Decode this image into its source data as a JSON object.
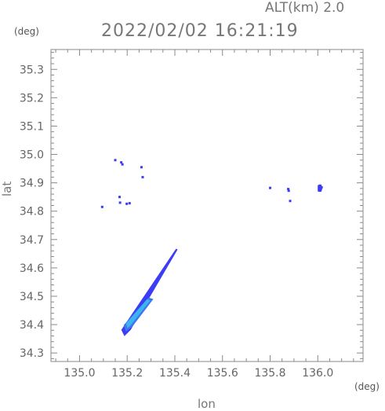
{
  "header": {
    "altitude": "ALT(km) 2.0",
    "timestamp": "2022/02/02 16:21:19",
    "y_unit": "(deg)",
    "x_unit": "(deg)"
  },
  "chart_data": {
    "type": "scatter",
    "xlabel": "lon",
    "ylabel": "lat",
    "xlim": [
      134.88,
      136.19
    ],
    "ylim": [
      34.27,
      35.37
    ],
    "xticks": [
      135.0,
      135.2,
      135.4,
      135.6,
      135.8,
      136.0
    ],
    "xtick_labels": [
      "135.0",
      "135.2",
      "135.4",
      "135.6",
      "135.8",
      "136.0"
    ],
    "yticks": [
      34.3,
      34.4,
      34.5,
      34.6,
      34.7,
      34.8,
      34.9,
      35.0,
      35.1,
      35.2,
      35.3
    ],
    "ytick_labels": [
      "34.3",
      "34.4",
      "34.5",
      "34.6",
      "34.7",
      "34.8",
      "34.9",
      "35.0",
      "35.1",
      "35.2",
      "35.3"
    ],
    "colors": {
      "dark": "#3c3cf5",
      "medium": "#3c78f0",
      "light": "#3cb4f0"
    },
    "band": {
      "start": [
        135.195,
        34.365
      ],
      "end": [
        135.405,
        34.665
      ],
      "bright_end": [
        135.29,
        34.49
      ]
    },
    "points": [
      {
        "x": 135.15,
        "y": 34.98,
        "level": "dark"
      },
      {
        "x": 135.175,
        "y": 34.972,
        "level": "dark"
      },
      {
        "x": 135.18,
        "y": 34.965,
        "level": "dark"
      },
      {
        "x": 135.26,
        "y": 34.955,
        "level": "dark"
      },
      {
        "x": 135.265,
        "y": 34.92,
        "level": "dark"
      },
      {
        "x": 135.168,
        "y": 34.85,
        "level": "dark"
      },
      {
        "x": 135.17,
        "y": 34.83,
        "level": "dark"
      },
      {
        "x": 135.198,
        "y": 34.826,
        "level": "dark"
      },
      {
        "x": 135.21,
        "y": 34.828,
        "level": "dark"
      },
      {
        "x": 135.095,
        "y": 34.815,
        "level": "dark"
      },
      {
        "x": 135.8,
        "y": 34.882,
        "level": "dark"
      },
      {
        "x": 135.876,
        "y": 34.878,
        "level": "dark"
      },
      {
        "x": 135.878,
        "y": 34.872,
        "level": "dark"
      },
      {
        "x": 135.884,
        "y": 34.836,
        "level": "dark"
      },
      {
        "x": 136.01,
        "y": 34.89,
        "level": "dark"
      },
      {
        "x": 136.016,
        "y": 34.884,
        "level": "dark"
      },
      {
        "x": 136.013,
        "y": 34.878,
        "level": "dark"
      }
    ]
  }
}
